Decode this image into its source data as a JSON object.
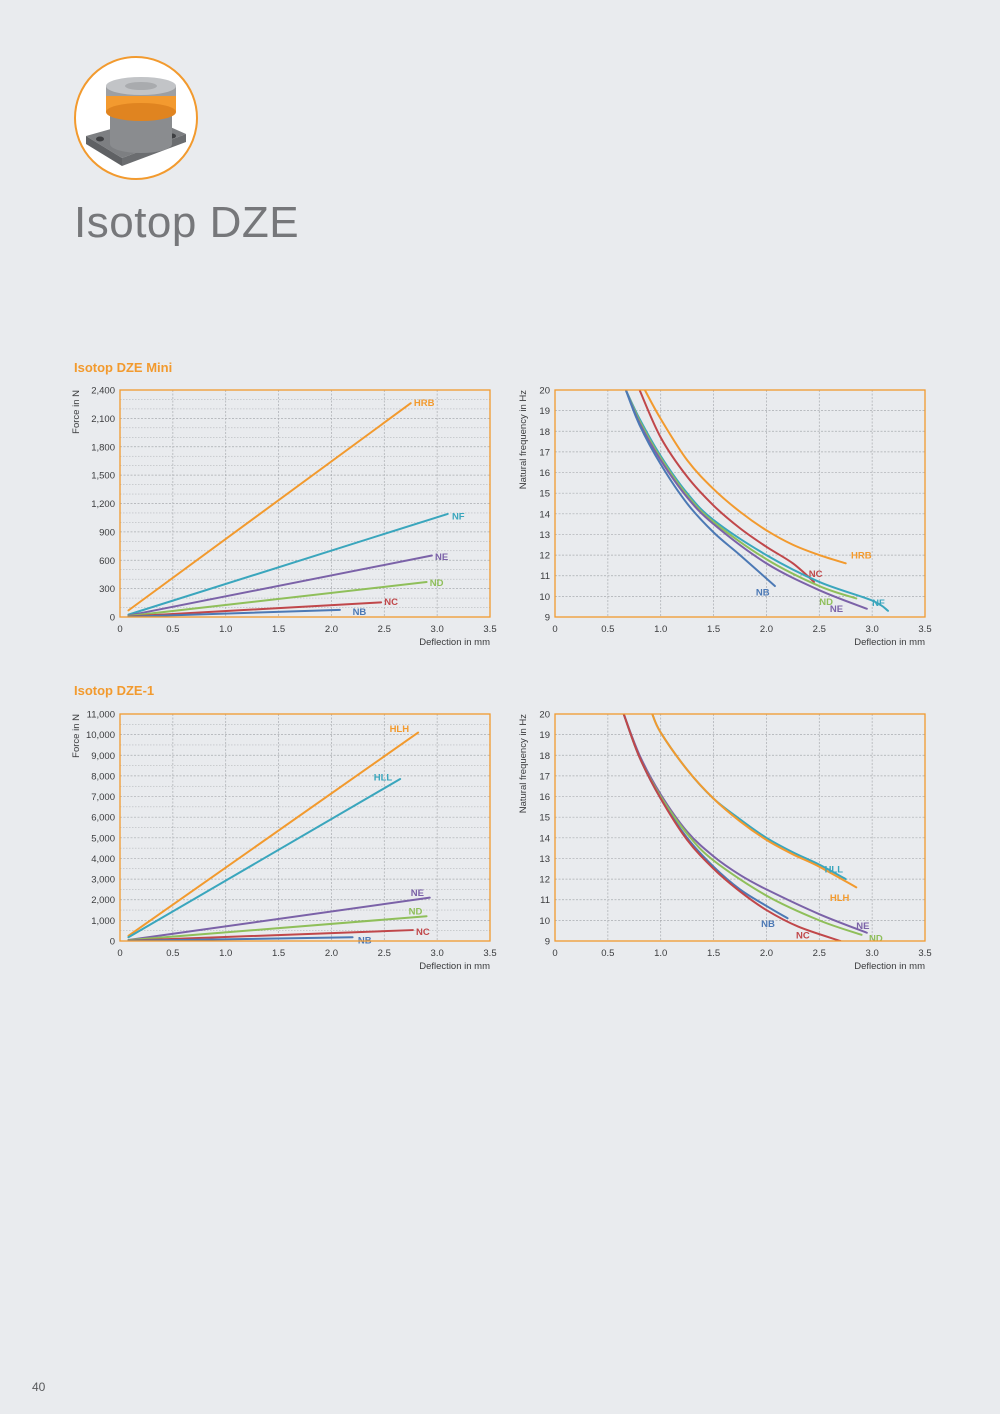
{
  "title": "Isotop DZE",
  "page_number": "40",
  "sections": [
    {
      "id": "sec1",
      "title": "Isotop DZE Mini"
    },
    {
      "id": "sec2",
      "title": "Isotop DZE-1"
    }
  ],
  "colors": {
    "frame": "#f29a2e",
    "grid": "#a9acb0",
    "text": "#3a3b3d",
    "HRB": "#f29a2e",
    "HLH": "#f29a2e",
    "HLL": "#3aa6bd",
    "NF": "#3aa6bd",
    "NE": "#7b62a8",
    "ND": "#8fbf5a",
    "NC": "#c0474a",
    "NB": "#4c79b5"
  },
  "chart_data": [
    {
      "type": "line",
      "panel": "Isotop DZE Mini",
      "xlabel": "Deflection in mm",
      "ylabel": "Force in N",
      "xlim": [
        0,
        3.5
      ],
      "ylim": [
        0,
        2400
      ],
      "xticks": [
        0,
        0.5,
        1.0,
        1.5,
        2.0,
        2.5,
        3.0,
        3.5
      ],
      "xtick_labels": [
        "0",
        "0.5",
        "1.0",
        "1.5",
        "2.0",
        "2.5",
        "3.0",
        "3.5"
      ],
      "yticks": [
        0,
        300,
        600,
        900,
        1200,
        1500,
        1800,
        2100,
        2400
      ],
      "ytick_labels": [
        "0",
        "300",
        "600",
        "900",
        "1,200",
        "1,500",
        "1,800",
        "2,100",
        "2,400"
      ],
      "minor_y_step": 100,
      "grid": true,
      "series": [
        {
          "name": "HRB",
          "x": [
            0.08,
            2.75
          ],
          "y": [
            70,
            2260
          ],
          "label_at": [
            2.78,
            2270
          ]
        },
        {
          "name": "NF",
          "x": [
            0.08,
            3.1
          ],
          "y": [
            25,
            1090
          ],
          "label_at": [
            3.14,
            1070
          ]
        },
        {
          "name": "NE",
          "x": [
            0.08,
            2.95
          ],
          "y": [
            15,
            650
          ],
          "label_at": [
            2.98,
            640
          ]
        },
        {
          "name": "ND",
          "x": [
            0.08,
            2.9
          ],
          "y": [
            10,
            370
          ],
          "label_at": [
            2.93,
            365
          ]
        },
        {
          "name": "NC",
          "x": [
            0.08,
            2.47
          ],
          "y": [
            5,
            155
          ],
          "label_at": [
            2.5,
            165
          ]
        },
        {
          "name": "NB",
          "x": [
            0.08,
            2.08
          ],
          "y": [
            3,
            75
          ],
          "label_at": [
            2.2,
            60
          ]
        }
      ]
    },
    {
      "type": "line",
      "panel": "Isotop DZE Mini",
      "xlabel": "Deflection in mm",
      "ylabel": "Natural frequency in Hz",
      "xlim": [
        0,
        3.5
      ],
      "ylim": [
        9,
        20
      ],
      "xticks": [
        0,
        0.5,
        1.0,
        1.5,
        2.0,
        2.5,
        3.0,
        3.5
      ],
      "xtick_labels": [
        "0",
        "0.5",
        "1.0",
        "1.5",
        "2.0",
        "2.5",
        "3.0",
        "3.5"
      ],
      "yticks": [
        9,
        10,
        11,
        12,
        13,
        14,
        15,
        16,
        17,
        18,
        19,
        20
      ],
      "ytick_labels": [
        "9",
        "10",
        "11",
        "12",
        "13",
        "14",
        "15",
        "16",
        "17",
        "18",
        "19",
        "20"
      ],
      "grid": true,
      "series": [
        {
          "name": "HRB",
          "x": [
            0.85,
            1.0,
            1.25,
            1.5,
            1.75,
            2.0,
            2.25,
            2.5,
            2.75
          ],
          "y": [
            20,
            18.6,
            16.6,
            15.2,
            14.1,
            13.2,
            12.5,
            12.0,
            11.6
          ],
          "label_at": [
            2.8,
            12.0
          ]
        },
        {
          "name": "NC",
          "x": [
            0.8,
            1.0,
            1.25,
            1.5,
            1.75,
            2.0,
            2.25,
            2.45
          ],
          "y": [
            20,
            17.7,
            15.8,
            14.4,
            13.3,
            12.4,
            11.6,
            10.7
          ],
          "label_at": [
            2.4,
            11.1
          ]
        },
        {
          "name": "NF",
          "x": [
            0.67,
            0.8,
            1.0,
            1.25,
            1.5,
            2.0,
            2.5,
            3.0,
            3.15
          ],
          "y": [
            20,
            18.6,
            16.8,
            15.0,
            13.7,
            12.0,
            10.7,
            9.8,
            9.3
          ],
          "label_at": [
            3.0,
            9.7
          ]
        },
        {
          "name": "ND",
          "x": [
            0.67,
            0.8,
            1.0,
            1.25,
            1.5,
            2.0,
            2.5,
            2.85
          ],
          "y": [
            20,
            18.5,
            16.7,
            14.9,
            13.6,
            11.8,
            10.5,
            9.9
          ],
          "label_at": [
            2.5,
            9.75
          ]
        },
        {
          "name": "NE",
          "x": [
            0.67,
            0.8,
            1.0,
            1.25,
            1.5,
            2.0,
            2.5,
            2.95
          ],
          "y": [
            20,
            18.4,
            16.6,
            14.8,
            13.5,
            11.6,
            10.3,
            9.4
          ],
          "label_at": [
            2.6,
            9.4
          ]
        },
        {
          "name": "NB",
          "x": [
            0.67,
            0.8,
            1.0,
            1.25,
            1.5,
            1.75,
            2.08
          ],
          "y": [
            20,
            18.3,
            16.4,
            14.5,
            13.1,
            12.0,
            10.5
          ],
          "label_at": [
            1.9,
            10.2
          ]
        }
      ]
    },
    {
      "type": "line",
      "panel": "Isotop DZE-1",
      "xlabel": "Deflection in mm",
      "ylabel": "Force in N",
      "xlim": [
        0,
        3.5
      ],
      "ylim": [
        0,
        11000
      ],
      "xticks": [
        0,
        0.5,
        1.0,
        1.5,
        2.0,
        2.5,
        3.0,
        3.5
      ],
      "xtick_labels": [
        "0",
        "0.5",
        "1.0",
        "1.5",
        "2.0",
        "2.5",
        "3.0",
        "3.5"
      ],
      "yticks": [
        0,
        1000,
        2000,
        3000,
        4000,
        5000,
        6000,
        7000,
        8000,
        9000,
        10000,
        11000
      ],
      "ytick_labels": [
        "0",
        "1,000",
        "2,000",
        "3,000",
        "4,000",
        "5,000",
        "6,000",
        "7,000",
        "8,000",
        "9,000",
        "10,000",
        "11,000"
      ],
      "minor_y_step": 500,
      "grid": true,
      "series": [
        {
          "name": "HLH",
          "x": [
            0.08,
            2.82
          ],
          "y": [
            250,
            10100
          ],
          "label_at": [
            2.55,
            10300
          ]
        },
        {
          "name": "HLL",
          "x": [
            0.08,
            2.65
          ],
          "y": [
            180,
            7850
          ],
          "label_at": [
            2.4,
            7950
          ]
        },
        {
          "name": "NE",
          "x": [
            0.08,
            2.93
          ],
          "y": [
            50,
            2100
          ],
          "label_at": [
            2.75,
            2350
          ]
        },
        {
          "name": "ND",
          "x": [
            0.08,
            2.9
          ],
          "y": [
            40,
            1200
          ],
          "label_at": [
            2.73,
            1450
          ]
        },
        {
          "name": "NC",
          "x": [
            0.08,
            2.77
          ],
          "y": [
            20,
            530
          ],
          "label_at": [
            2.8,
            450
          ]
        },
        {
          "name": "NB",
          "x": [
            0.08,
            2.2
          ],
          "y": [
            10,
            180
          ],
          "label_at": [
            2.25,
            50
          ]
        }
      ]
    },
    {
      "type": "line",
      "panel": "Isotop DZE-1",
      "xlabel": "Deflection in mm",
      "ylabel": "Natural frequency in Hz",
      "xlim": [
        0,
        3.5
      ],
      "ylim": [
        9,
        20
      ],
      "xticks": [
        0,
        0.5,
        1.0,
        1.5,
        2.0,
        2.5,
        3.0,
        3.5
      ],
      "xtick_labels": [
        "0",
        "0.5",
        "1.0",
        "1.5",
        "2.0",
        "2.5",
        "3.0",
        "3.5"
      ],
      "yticks": [
        9,
        10,
        11,
        12,
        13,
        14,
        15,
        16,
        17,
        18,
        19,
        20
      ],
      "ytick_labels": [
        "9",
        "10",
        "11",
        "12",
        "13",
        "14",
        "15",
        "16",
        "17",
        "18",
        "19",
        "20"
      ],
      "grid": true,
      "series": [
        {
          "name": "HLL",
          "x": [
            0.92,
            1.0,
            1.25,
            1.5,
            1.75,
            2.0,
            2.25,
            2.5,
            2.75
          ],
          "y": [
            20,
            19.1,
            17.3,
            15.9,
            14.9,
            14.0,
            13.3,
            12.7,
            12.0
          ],
          "label_at": [
            2.55,
            12.5
          ]
        },
        {
          "name": "HLH",
          "x": [
            0.92,
            1.0,
            1.25,
            1.5,
            1.75,
            2.0,
            2.25,
            2.5,
            2.85
          ],
          "y": [
            20,
            19.1,
            17.3,
            15.9,
            14.8,
            13.9,
            13.2,
            12.6,
            11.6
          ],
          "label_at": [
            2.6,
            11.1
          ]
        },
        {
          "name": "NE",
          "x": [
            0.65,
            0.8,
            1.0,
            1.25,
            1.5,
            1.75,
            2.0,
            2.5,
            2.95
          ],
          "y": [
            20,
            18.0,
            16.1,
            14.3,
            13.1,
            12.2,
            11.5,
            10.3,
            9.4
          ],
          "label_at": [
            2.85,
            9.75
          ]
        },
        {
          "name": "ND",
          "x": [
            0.65,
            0.8,
            1.0,
            1.25,
            1.5,
            2.0,
            2.5,
            2.9
          ],
          "y": [
            20,
            17.9,
            16.0,
            14.2,
            12.9,
            11.2,
            10.0,
            9.3
          ],
          "label_at": [
            2.97,
            9.15
          ]
        },
        {
          "name": "NB",
          "x": [
            0.65,
            0.8,
            1.0,
            1.25,
            1.5,
            1.75,
            2.0,
            2.2
          ],
          "y": [
            20,
            17.9,
            15.9,
            14.0,
            12.6,
            11.5,
            10.7,
            10.1
          ],
          "label_at": [
            1.95,
            9.85
          ]
        },
        {
          "name": "NC",
          "x": [
            0.65,
            0.8,
            1.0,
            1.25,
            1.5,
            1.75,
            2.0,
            2.3,
            2.7
          ],
          "y": [
            20,
            17.9,
            15.9,
            13.9,
            12.5,
            11.4,
            10.5,
            9.7,
            9.0
          ],
          "label_at": [
            2.28,
            9.3
          ]
        }
      ]
    }
  ]
}
